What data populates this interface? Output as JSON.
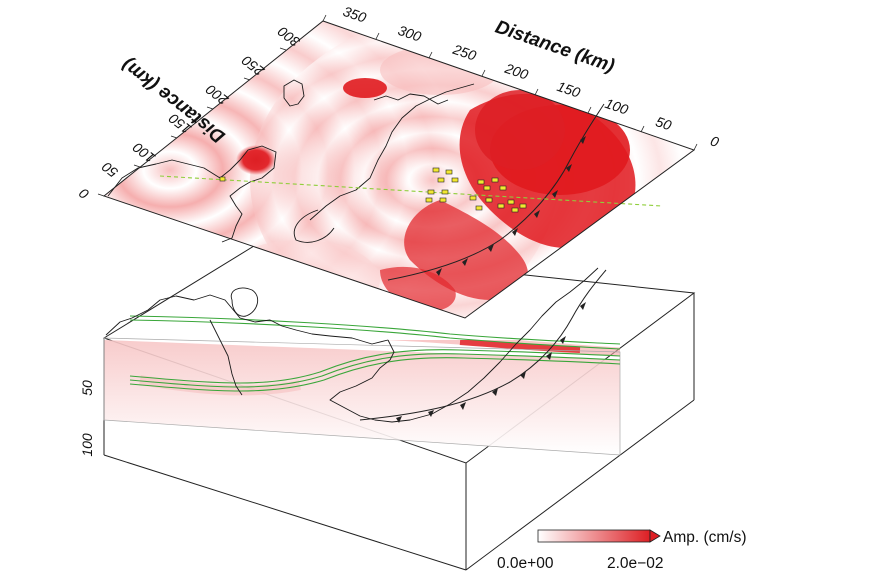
{
  "top_panel": {
    "axis_top_title": "Distance (km)",
    "axis_left_title": "Distance (km)",
    "ticks_top": [
      "350",
      "300",
      "250",
      "200",
      "150",
      "100",
      "50",
      "0"
    ],
    "ticks_left": [
      "300",
      "250",
      "200",
      "150",
      "100",
      "50",
      "0"
    ]
  },
  "bottom_panel": {
    "depth_ticks": [
      "50",
      "100"
    ]
  },
  "colorbar": {
    "label": "Amp. (cm/s)",
    "min_label": "0.0e+00",
    "max_label": "2.0e−02",
    "min_color": "#ffffff",
    "max_color": "#dd1f24"
  },
  "colors": {
    "wavefield_strong": "#e0191e",
    "wavefield_ripple": "#f08c8c",
    "slab_lines": "#3aa63a",
    "profile_line": "#8fce3a",
    "station_marker": "#f2e830"
  }
}
